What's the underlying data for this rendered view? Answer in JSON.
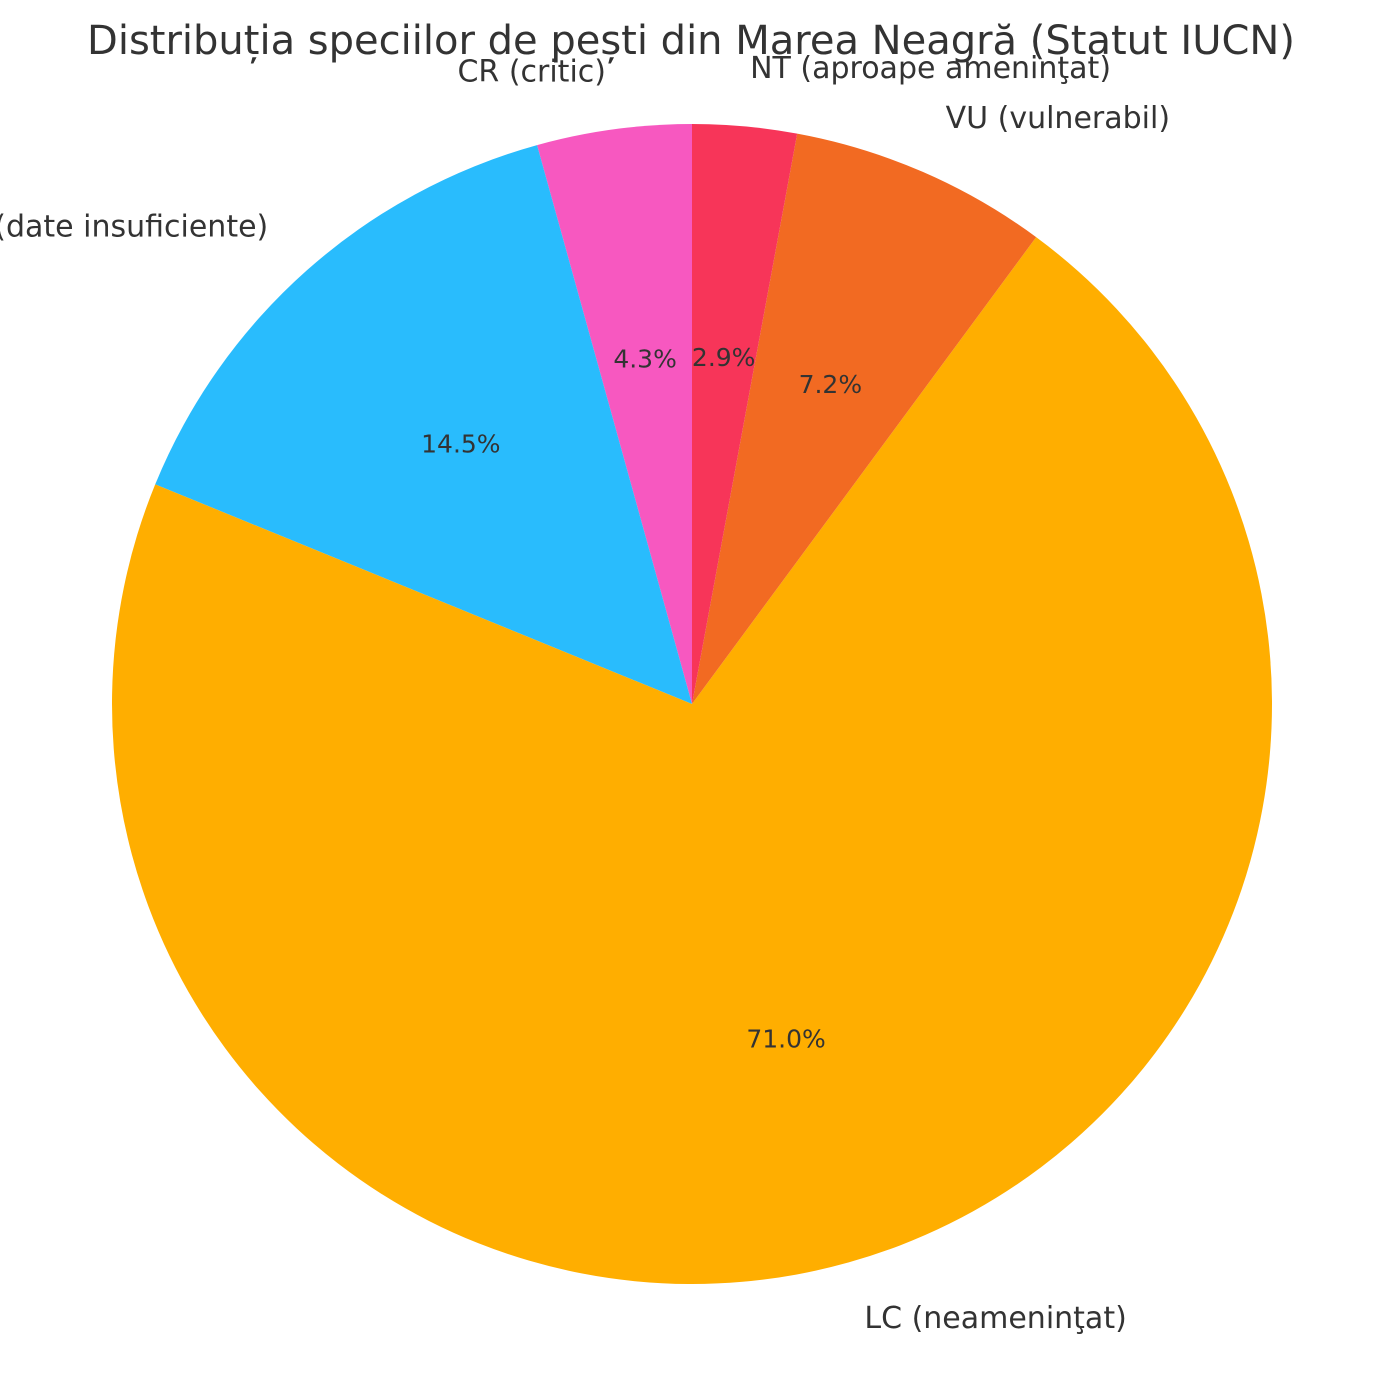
{
  "chart_data": {
    "type": "pie",
    "title": "Distribuția speciilor de pești din Marea Neagră (Statut IUCN)",
    "start_angle_deg": 90,
    "direction": "counterclockwise",
    "slices": [
      {
        "label": "CR (critic)",
        "value": 4.3,
        "pct_label": "4.3%",
        "color": "#F758C0"
      },
      {
        "label": "DD (date insuficiente)",
        "value": 14.5,
        "pct_label": "14.5%",
        "color": "#29BCFD"
      },
      {
        "label": "LC (neameninţat)",
        "value": 71.0,
        "pct_label": "71.0%",
        "color": "#FFAE00"
      },
      {
        "label": "VU (vulnerabil)",
        "value": 7.2,
        "pct_label": "7.2%",
        "color": "#F26A22"
      },
      {
        "label": "NT (aproape ameninţat)",
        "value": 2.9,
        "pct_label": "2.9%",
        "color": "#F73559"
      }
    ]
  }
}
